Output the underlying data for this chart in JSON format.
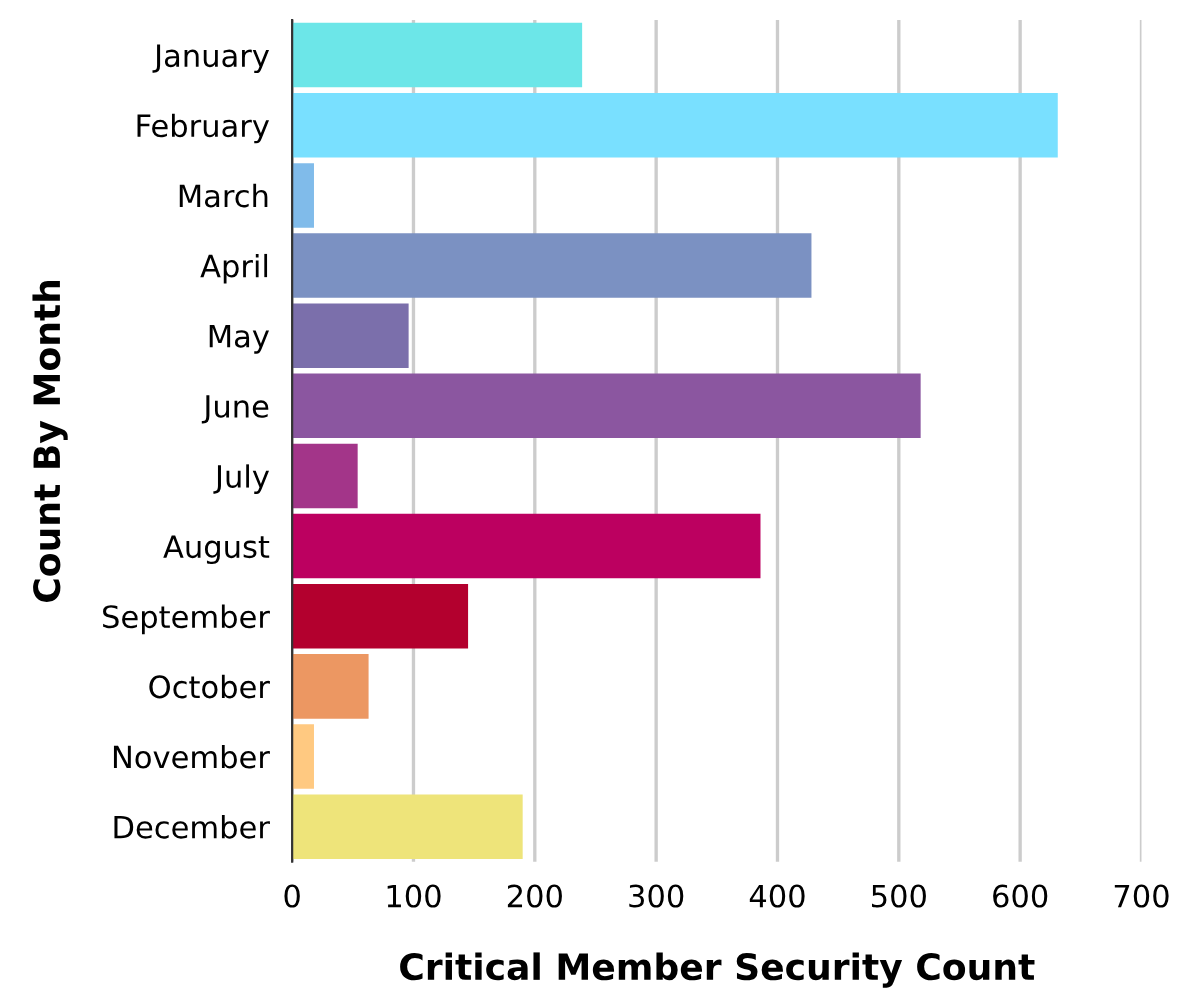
{
  "chart_data": {
    "type": "bar",
    "orientation": "horizontal",
    "categories": [
      "January",
      "February",
      "March",
      "April",
      "May",
      "June",
      "July",
      "August",
      "September",
      "October",
      "November",
      "December"
    ],
    "values": [
      239,
      631,
      18,
      428,
      96,
      518,
      54,
      386,
      145,
      63,
      18,
      190
    ],
    "colors": [
      "#6ce6e8",
      "#79e0ff",
      "#80bbea",
      "#7b91c2",
      "#7b6fab",
      "#8b56a0",
      "#a33589",
      "#bc0060",
      "#b3002e",
      "#ec9762",
      "#ffc981",
      "#eee47a"
    ],
    "xlabel": "Critical Member Security Count",
    "ylabel": "Count By Month",
    "xlim": [
      0,
      700
    ],
    "xticks": [
      0,
      100,
      200,
      300,
      400,
      500,
      600,
      700
    ],
    "grid": "x",
    "legend": false
  }
}
